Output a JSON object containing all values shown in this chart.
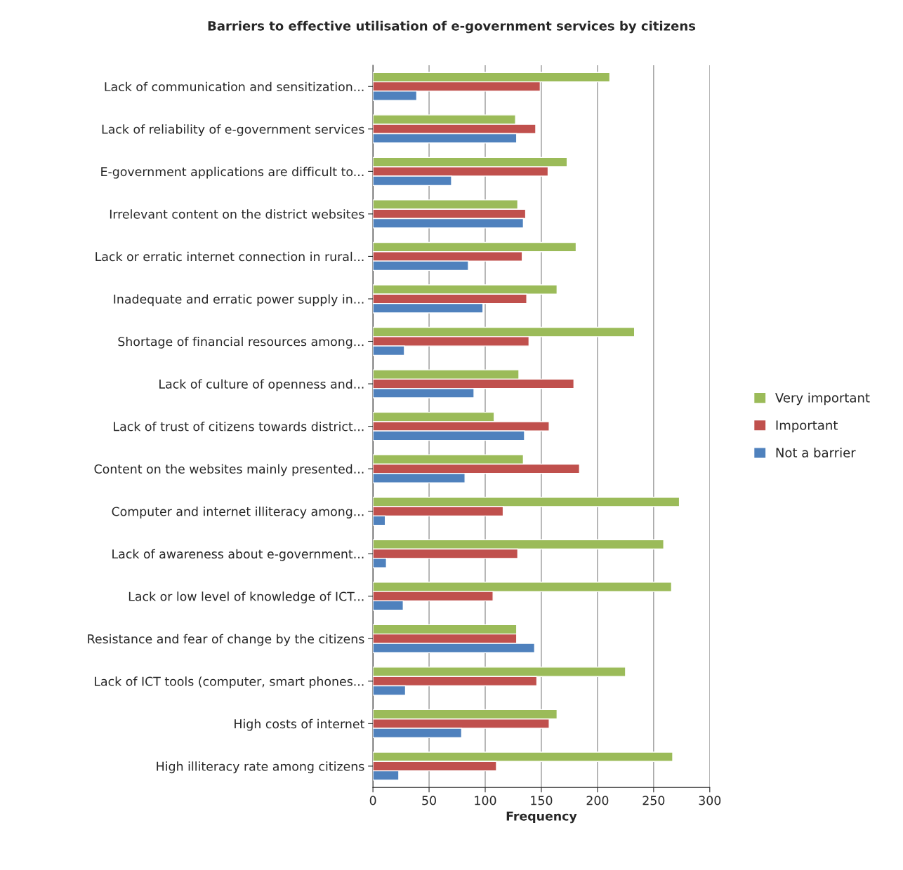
{
  "chart_data": {
    "type": "bar",
    "orientation": "horizontal",
    "title": "Barriers to effective utilisation of e-government services by citizens",
    "xlabel": "Frequency",
    "categories": [
      "Lack of communication and sensitization...",
      "Lack of reliability of e-government services",
      "E-government applications are difficult to...",
      "Irrelevant content on the district websites",
      "Lack or erratic internet connection in rural...",
      "Inadequate and erratic power supply in...",
      "Shortage of financial resources among...",
      "Lack of culture of openness and...",
      "Lack of trust of citizens towards district...",
      "Content on the websites mainly presented...",
      "Computer and internet illiteracy among...",
      "Lack of awareness about e-government...",
      "Lack or low level of knowledge of ICT...",
      "Resistance and fear of change by the citizens",
      "Lack of ICT tools (computer, smart phones...",
      "High costs of internet",
      "High illiteracy rate among citizens"
    ],
    "series": [
      {
        "name": "Very important",
        "color": "#9bbb59",
        "values": [
          211,
          127,
          173,
          129,
          181,
          164,
          233,
          130,
          108,
          134,
          273,
          259,
          266,
          128,
          225,
          164,
          267
        ]
      },
      {
        "name": "Important",
        "color": "#c0504d",
        "values": [
          149,
          145,
          156,
          136,
          133,
          137,
          139,
          179,
          157,
          184,
          116,
          129,
          107,
          128,
          146,
          157,
          110
        ]
      },
      {
        "name": "Not a barrier",
        "color": "#4f81bd",
        "values": [
          39,
          128,
          70,
          134,
          85,
          98,
          28,
          90,
          135,
          82,
          11,
          12,
          27,
          144,
          29,
          79,
          23
        ]
      }
    ],
    "xlim": [
      0,
      300
    ],
    "xticks": [
      0,
      50,
      100,
      150,
      200,
      250,
      300
    ],
    "grid": "x",
    "legend": "right"
  }
}
